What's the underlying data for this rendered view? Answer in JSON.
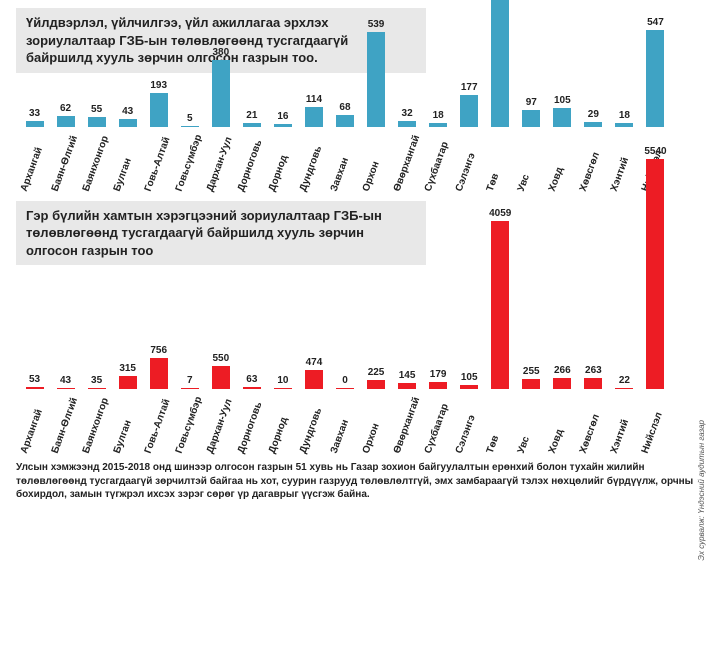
{
  "chart1": {
    "type": "bar",
    "title": "Үйлдвэрлэл, үйлчилгээ, үйл ажиллагаа эрхлэх зориулалтаар ГЗБ-ын төлөвлөгөөнд тусгагдаагүй байршилд хууль зөрчин олгосон газрын тоо.",
    "bar_color": "#3fa3c4",
    "label_color": "#222222",
    "title_bg": "#e8e8e8",
    "max_value": 954,
    "categories": [
      "Архангай",
      "Баян-Өлгий",
      "Баянхонгор",
      "Булган",
      "Говь-Алтай",
      "Говьсүмбэр",
      "Дархан-Уул",
      "Дорноговь",
      "Дорнод",
      "Дундговь",
      "Завхан",
      "Орхон",
      "Өвөрхангай",
      "Сүхбаатар",
      "Сэлэнгэ",
      "Төв",
      "Увс",
      "Ховд",
      "Хөвсгөл",
      "Хэнтий",
      "Нийслэл"
    ],
    "values": [
      33,
      62,
      55,
      43,
      193,
      5,
      380,
      21,
      16,
      114,
      68,
      539,
      32,
      18,
      177,
      954,
      97,
      105,
      29,
      18,
      547
    ]
  },
  "chart2": {
    "type": "bar",
    "title": "Гэр бүлийн хамтын хэрэгцээний зориулалтаар ГЗБ-ын төлөвлөгөөнд тусгагдаагүй байршилд хууль зөрчин олгосон газрын тоо",
    "bar_color": "#ed1c24",
    "label_color": "#222222",
    "title_bg": "#e8e8e8",
    "max_value": 5540,
    "categories": [
      "Архангай",
      "Баян-Өлгий",
      "Баянхонгор",
      "Булган",
      "Говь-Алтай",
      "Говьсүмбэр",
      "Дархан-Уул",
      "Дорноговь",
      "Дорнод",
      "Дундговь",
      "Завхан",
      "Орхон",
      "Өвөрхангай",
      "Сүхбаатар",
      "Сэлэнгэ",
      "Төв",
      "Увс",
      "Ховд",
      "Хөвсгөл",
      "Хэнтий",
      "Нийслэл"
    ],
    "values": [
      53,
      43,
      35,
      315,
      756,
      7,
      550,
      63,
      10,
      474,
      0,
      225,
      145,
      179,
      105,
      4059,
      255,
      266,
      263,
      22,
      5540
    ]
  },
  "footnote": "Улсын хэмжээнд 2015-2018 онд шинээр олгосон газрын 51 хувь нь Газар зохион байгуулалтын ерөнхий болон тухайн жилийн төлөвлөгөөнд тусгагдаагүй зөрчилтэй байгаа нь хот, суурин газрууд төлөвлөлтгүй, эмх замбараагүй тэлэх нөхцөлийг бүрдүүлж, орчны бохирдол, замын түгжрэл ихсэх зэрэг сөрөг үр дагаврыг үүсгэж байна.",
  "source": "Эх сурвалж: Үндэсний аудитын газар"
}
